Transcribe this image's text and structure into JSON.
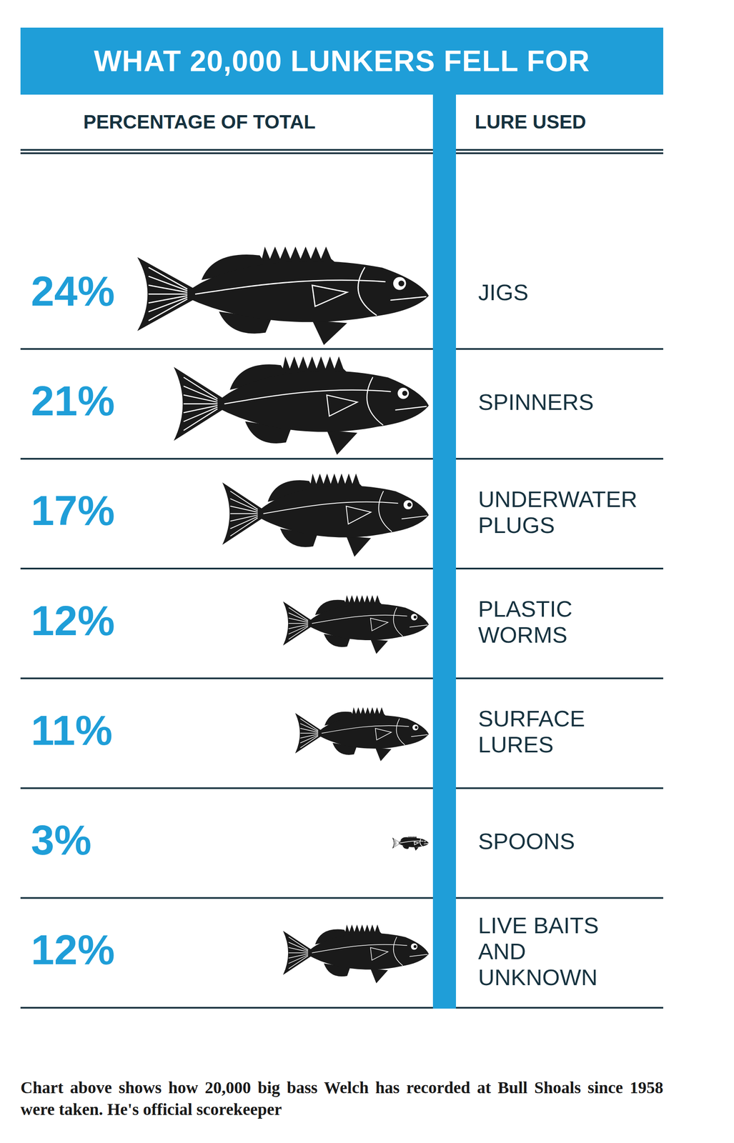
{
  "chart_data": {
    "type": "bar",
    "title": "WHAT 20,000 LUNKERS FELL FOR",
    "x_label": "PERCENTAGE OF TOTAL",
    "y_label": "LURE USED",
    "categories": [
      "JIGS",
      "SPINNERS",
      "UNDERWATER PLUGS",
      "PLASTIC WORMS",
      "SURFACE LURES",
      "SPOONS",
      "LIVE BAITS AND UNKNOWN"
    ],
    "values": [
      24,
      21,
      17,
      12,
      11,
      3,
      12
    ],
    "value_labels": [
      "24%",
      "21%",
      "17%",
      "12%",
      "11%",
      "3%",
      "12%"
    ],
    "color": "#1a1a1a",
    "orientation": "horizontal",
    "data_labels": true,
    "tick_labels": "y",
    "grid": false,
    "xlim": [
      0,
      25
    ]
  },
  "caption": "Chart above shows how 20,000 big bass Welch has recorded at Bull Shoals since 1958 were taken. He's official scorekeeper"
}
